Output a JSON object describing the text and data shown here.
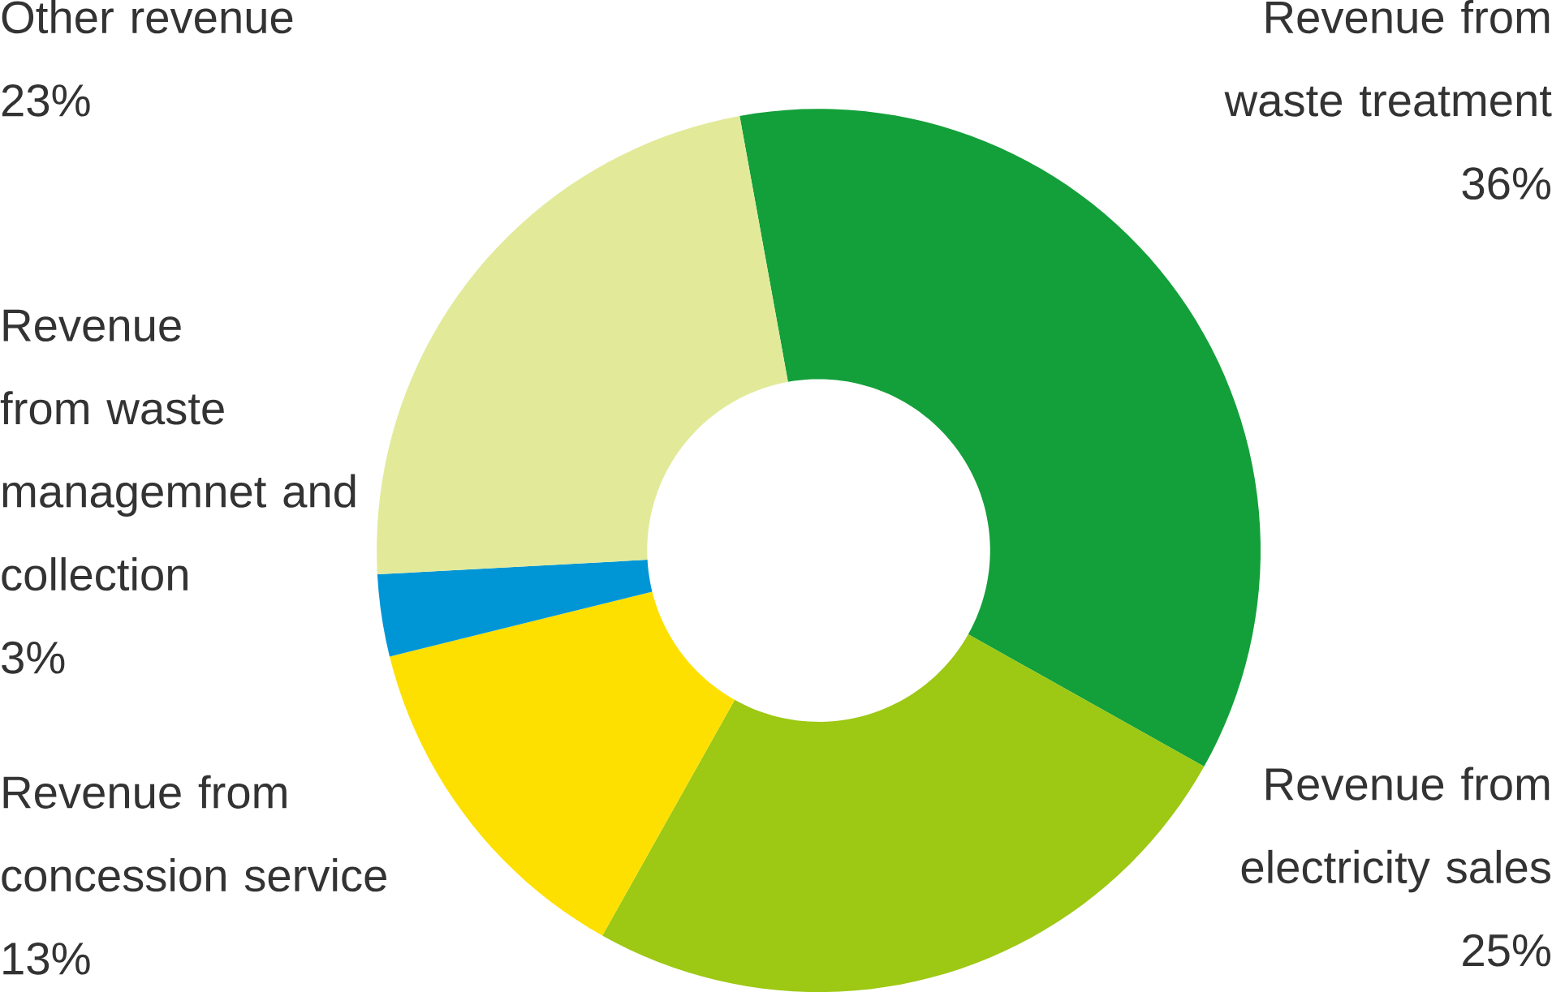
{
  "chart_data": {
    "type": "donut",
    "categories": [
      "Revenue from waste treatment",
      "Revenue from electricity sales",
      "Revenue from concession service",
      "Revenue from waste managemnet and collection",
      "Other revenue"
    ],
    "values": [
      36,
      25,
      13,
      3,
      23
    ],
    "value_labels": [
      "36%",
      "25%",
      "13%",
      "3%",
      "23%"
    ],
    "colors": [
      "#13a03a",
      "#9dc813",
      "#fde000",
      "#0096d6",
      "#e2ea9a"
    ]
  }
}
